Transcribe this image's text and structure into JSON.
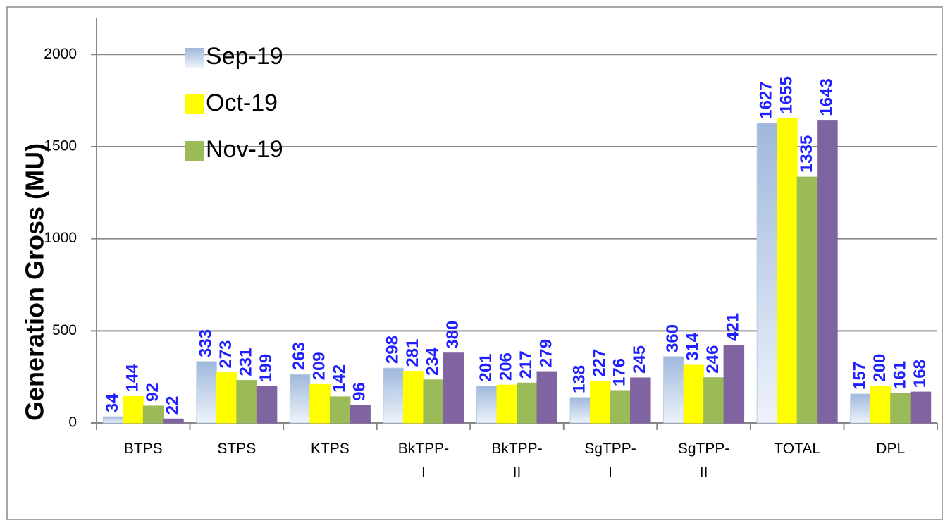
{
  "chart_data": {
    "type": "bar",
    "y_label": "Generation Gross (MU)",
    "categories": [
      "BTPS",
      "STPS",
      "KTPS",
      "BkTPP-I",
      "BkTPP-II",
      "SgTPP-I",
      "SgTPP-II",
      "TOTAL",
      "DPL"
    ],
    "series": [
      {
        "name": "Sep-19",
        "color": "#b8cce4",
        "values": [
          34,
          333,
          263,
          298,
          201,
          138,
          360,
          1627,
          157
        ]
      },
      {
        "name": "Oct-19",
        "color": "#ffff00",
        "values": [
          144,
          273,
          209,
          281,
          206,
          227,
          314,
          1655,
          200
        ]
      },
      {
        "name": "Nov-19",
        "color": "#9bbb59",
        "values": [
          92,
          231,
          142,
          234,
          217,
          176,
          246,
          1335,
          161
        ]
      },
      {
        "color": "#8064a2",
        "values": [
          22,
          199,
          96,
          380,
          279,
          245,
          421,
          1643,
          168
        ]
      }
    ],
    "ylim": [
      0,
      2200
    ],
    "yticks": [
      0,
      500,
      1000,
      1500,
      2000
    ],
    "grid": true,
    "legend": "upper left"
  }
}
